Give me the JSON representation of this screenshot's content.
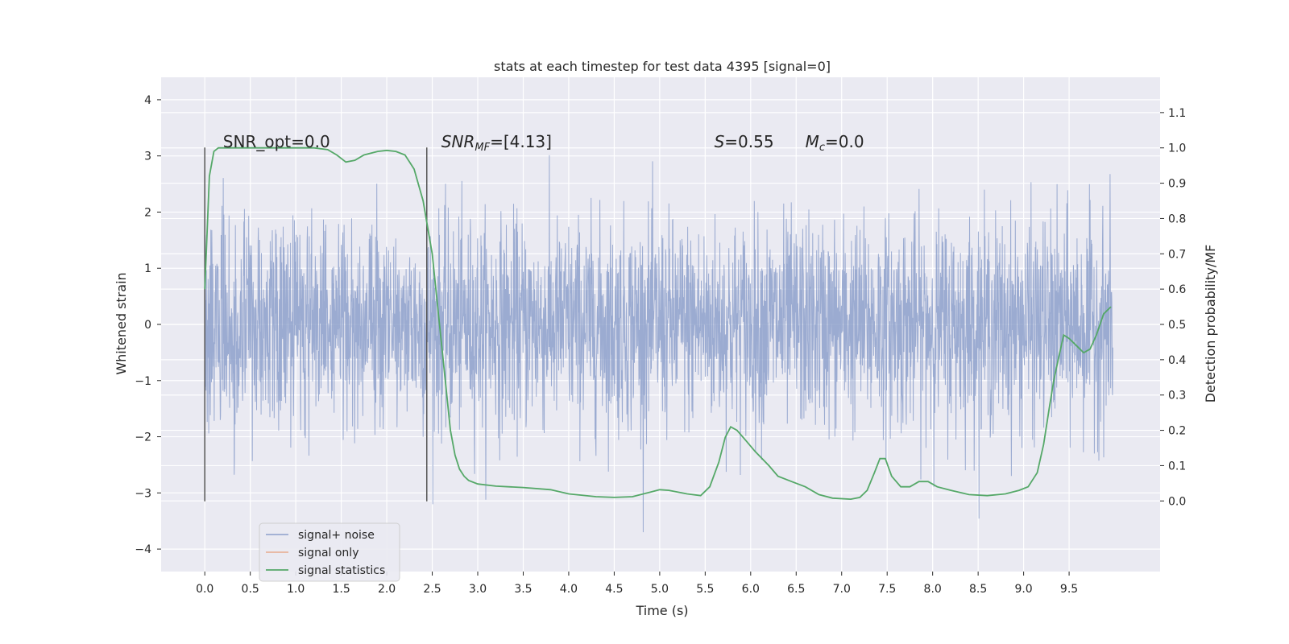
{
  "chart_data": {
    "type": "line",
    "title": "stats at each timestep for test data 4395 [signal=0]",
    "xlabel": "Time (s)",
    "ylabel": "Whitened strain",
    "y2label": "Detection probability/MF",
    "xlim": [
      -0.48,
      10.5
    ],
    "ylim": [
      -4.4,
      4.4
    ],
    "y2lim": [
      -0.2,
      1.2
    ],
    "x_ticks": [
      "0.0",
      "0.5",
      "1.0",
      "1.5",
      "2.0",
      "2.5",
      "3.0",
      "3.5",
      "4.0",
      "4.5",
      "5.0",
      "5.5",
      "6.0",
      "6.5",
      "7.0",
      "7.5",
      "8.0",
      "8.5",
      "9.0",
      "9.5"
    ],
    "y_ticks": [
      "−4",
      "−3",
      "−2",
      "−1",
      "0",
      "1",
      "2",
      "3",
      "4"
    ],
    "y2_ticks": [
      "0.0",
      "0.1",
      "0.2",
      "0.3",
      "0.4",
      "0.5",
      "0.6",
      "0.7",
      "0.8",
      "0.9",
      "1.0",
      "1.1"
    ],
    "grid": true,
    "legend_position": "lower-left",
    "annotations": [
      {
        "text": "SNR_opt=0.0",
        "x": 0.2
      },
      {
        "text": "SNR",
        "sub": "MF",
        "suffix": "=[4.13]",
        "x": 2.6
      },
      {
        "text": "S",
        "suffix": "=0.55",
        "x": 5.6
      },
      {
        "text": "M",
        "sub": "c",
        "suffix": "=0.0",
        "x": 6.6
      }
    ],
    "vlines": [
      0.0,
      2.44
    ],
    "series": [
      {
        "name": "signal+ noise",
        "color": "#8da0cb",
        "description": "noise",
        "t_range": [
          0.0,
          9.98
        ],
        "sigma": 0.92
      },
      {
        "name": "signal only",
        "color": "#e8a98c",
        "values": []
      },
      {
        "name": "signal statistics",
        "color": "#55a868",
        "x": [
          0.0,
          0.05,
          0.1,
          0.15,
          0.2,
          0.4,
          0.6,
          0.8,
          1.0,
          1.2,
          1.35,
          1.45,
          1.55,
          1.65,
          1.75,
          1.9,
          2.0,
          2.1,
          2.2,
          2.3,
          2.4,
          2.5,
          2.6,
          2.7,
          2.75,
          2.8,
          2.85,
          2.9,
          3.0,
          3.2,
          3.5,
          3.8,
          4.0,
          4.3,
          4.5,
          4.7,
          4.9,
          5.0,
          5.1,
          5.3,
          5.45,
          5.55,
          5.65,
          5.72,
          5.78,
          5.85,
          5.95,
          6.05,
          6.2,
          6.3,
          6.45,
          6.6,
          6.75,
          6.9,
          7.1,
          7.2,
          7.28,
          7.36,
          7.42,
          7.48,
          7.55,
          7.65,
          7.75,
          7.85,
          7.95,
          8.05,
          8.2,
          8.4,
          8.6,
          8.8,
          8.95,
          9.05,
          9.15,
          9.22,
          9.28,
          9.33,
          9.38,
          9.44,
          9.5,
          9.58,
          9.66,
          9.73,
          9.8,
          9.88,
          9.96
        ],
        "values": [
          0.6,
          0.92,
          0.99,
          1.0,
          1.0,
          1.0,
          1.0,
          1.0,
          1.0,
          1.0,
          0.995,
          0.98,
          0.96,
          0.965,
          0.98,
          0.99,
          0.993,
          0.99,
          0.98,
          0.94,
          0.85,
          0.7,
          0.45,
          0.2,
          0.13,
          0.09,
          0.07,
          0.058,
          0.048,
          0.042,
          0.038,
          0.032,
          0.02,
          0.012,
          0.01,
          0.012,
          0.025,
          0.032,
          0.03,
          0.02,
          0.015,
          0.04,
          0.11,
          0.18,
          0.21,
          0.2,
          0.17,
          0.14,
          0.1,
          0.07,
          0.055,
          0.04,
          0.018,
          0.008,
          0.005,
          0.01,
          0.03,
          0.08,
          0.12,
          0.12,
          0.07,
          0.04,
          0.04,
          0.055,
          0.055,
          0.04,
          0.03,
          0.018,
          0.015,
          0.02,
          0.03,
          0.04,
          0.08,
          0.16,
          0.26,
          0.34,
          0.4,
          0.47,
          0.46,
          0.44,
          0.42,
          0.43,
          0.47,
          0.53,
          0.55
        ]
      }
    ]
  }
}
